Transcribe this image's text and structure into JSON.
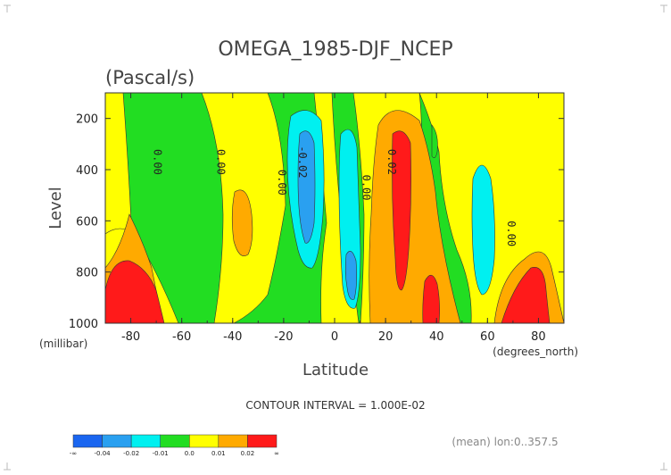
{
  "chart_data": {
    "type": "heatmap",
    "title": "OMEGA_1985-DJF_NCEP",
    "subtitle": "(Pascal/s)",
    "xlabel": "Latitude",
    "x_units": "(degrees_north)",
    "ylabel": "Level",
    "y_units": "(millibar)",
    "xlim": [
      -90,
      90
    ],
    "ylim": [
      1000,
      100
    ],
    "x_ticks": [
      "-80",
      "-60",
      "-40",
      "-20",
      "0",
      "20",
      "40",
      "60",
      "80"
    ],
    "x_tick_values": [
      -80,
      -60,
      -40,
      -20,
      0,
      20,
      40,
      60,
      80
    ],
    "y_ticks": [
      "200",
      "400",
      "600",
      "800",
      "1000"
    ],
    "y_tick_values": [
      200,
      400,
      600,
      800,
      1000
    ],
    "contour_interval_text": "CONTOUR INTERVAL = 1.000E-02",
    "footer_note": "(mean) lon:0..357.5",
    "contour_labels": [
      {
        "text": "0.00",
        "lat": -71,
        "level": 370
      },
      {
        "text": "0.00",
        "lat": -46,
        "level": 370
      },
      {
        "text": "0.00",
        "lat": -22,
        "level": 450
      },
      {
        "text": "-0.02",
        "lat": -14,
        "level": 370
      },
      {
        "text": "0.00",
        "lat": 11,
        "level": 470
      },
      {
        "text": "0.02",
        "lat": 21,
        "level": 370
      },
      {
        "text": "0.00",
        "lat": 68,
        "level": 650
      }
    ],
    "colorbar": {
      "labels": [
        "-∞",
        "-0.04",
        "-0.02",
        "-0.01",
        "0.0",
        "0.01",
        "0.02",
        "∞"
      ],
      "colors": [
        "#1a66f0",
        "#2aa0f0",
        "#00f0f0",
        "#22dd22",
        "#ffff00",
        "#ffaa00",
        "#ff1a1a"
      ]
    },
    "fields": {
      "background": "#22dd22",
      "yellow": "#ffff00",
      "orange": "#ffaa00",
      "red": "#ff1a1a",
      "cyan": "#00f0f0",
      "blue": "#2aa0f0"
    }
  }
}
